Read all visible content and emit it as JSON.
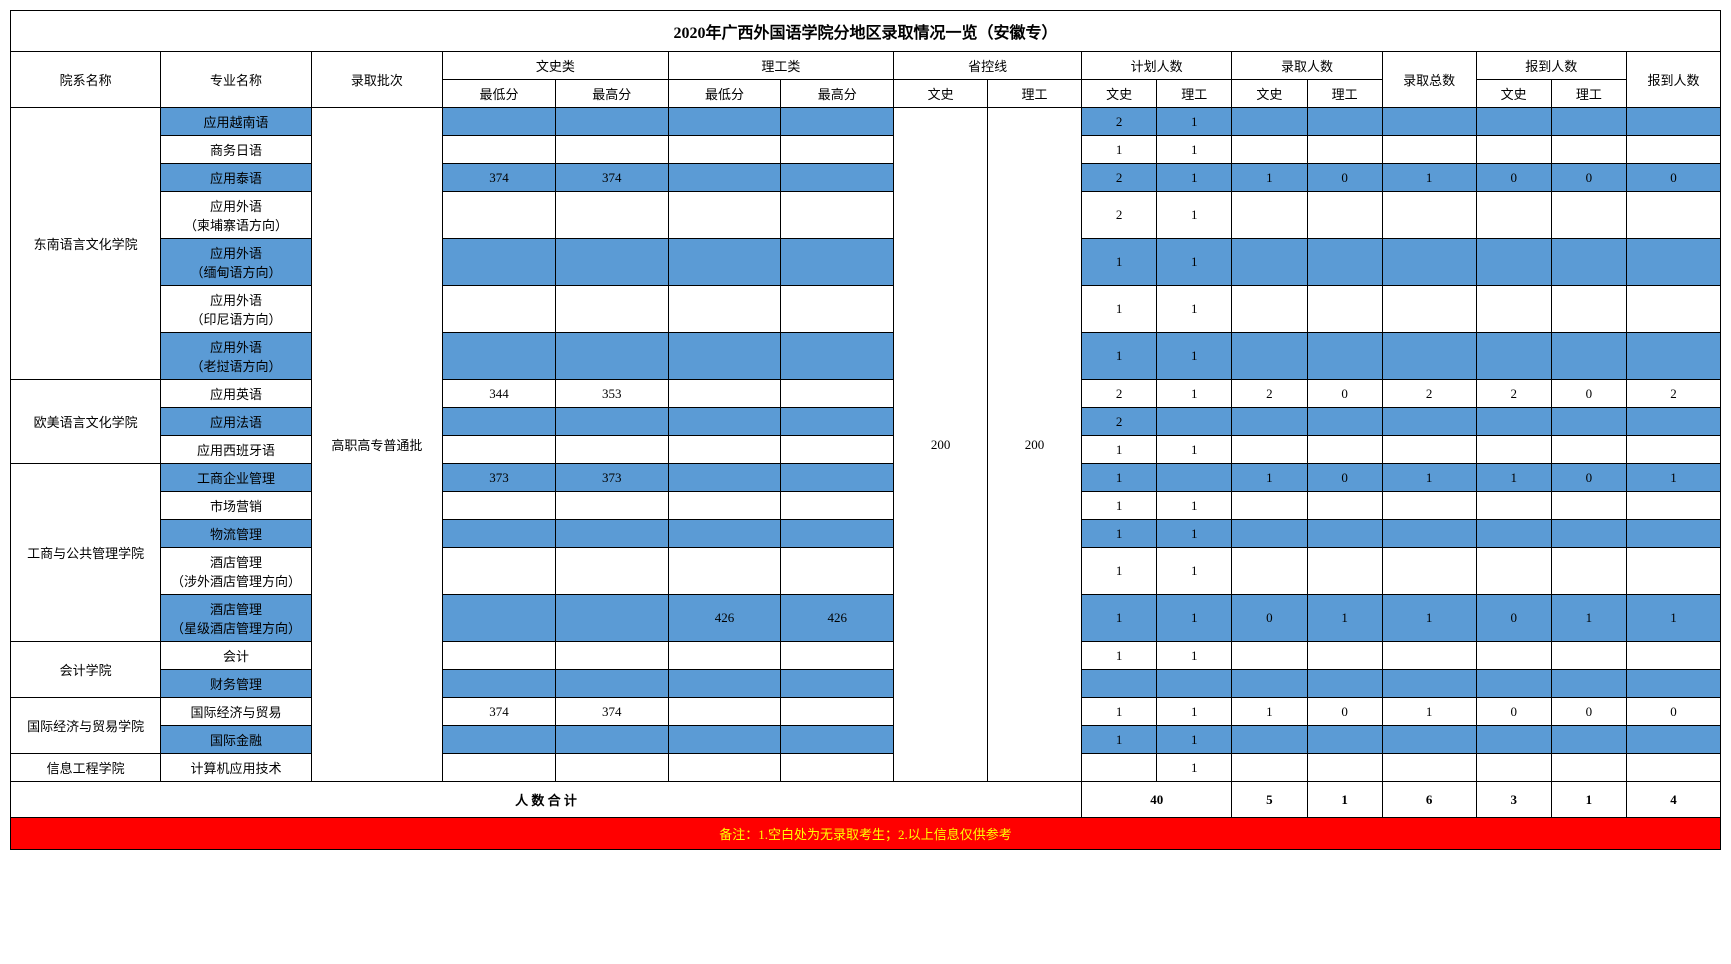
{
  "title": "2020年广西外国语学院分地区录取情况一览（安徽专）",
  "header_group": {
    "dept": "院系名称",
    "major": "专业名称",
    "batch": "录取批次",
    "wenshi": "文史类",
    "ligong": "理工类",
    "control": "省控线",
    "plan": "计划人数",
    "admit": "录取人数",
    "admit_total": "录取总数",
    "report": "报到人数",
    "report_total": "报到人数"
  },
  "header_sub": {
    "min": "最低分",
    "max": "最高分",
    "ws": "文史",
    "lg": "理工"
  },
  "batch_name": "高职高专普通批",
  "control_ws": "200",
  "control_lg": "200",
  "depts": [
    {
      "name": "东南语言文化学院",
      "rowspan": 7
    },
    {
      "name": "欧美语言文化学院",
      "rowspan": 3
    },
    {
      "name": "工商与公共管理学院",
      "rowspan": 5
    },
    {
      "name": "会计学院",
      "rowspan": 2
    },
    {
      "name": "国际经济与贸易学院",
      "rowspan": 2
    },
    {
      "name": "信息工程学院",
      "rowspan": 1
    }
  ],
  "rows": [
    {
      "blue": true,
      "major": "应用越南语",
      "wmin": "",
      "wmax": "",
      "lmin": "",
      "lmax": "",
      "pws": "2",
      "plg": "1",
      "aws": "",
      "alg": "",
      "atot": "",
      "rws": "",
      "rlg": "",
      "rtot": ""
    },
    {
      "blue": false,
      "major": "商务日语",
      "wmin": "",
      "wmax": "",
      "lmin": "",
      "lmax": "",
      "pws": "1",
      "plg": "1",
      "aws": "",
      "alg": "",
      "atot": "",
      "rws": "",
      "rlg": "",
      "rtot": ""
    },
    {
      "blue": true,
      "major": "应用泰语",
      "wmin": "374",
      "wmax": "374",
      "lmin": "",
      "lmax": "",
      "pws": "2",
      "plg": "1",
      "aws": "1",
      "alg": "0",
      "atot": "1",
      "rws": "0",
      "rlg": "0",
      "rtot": "0"
    },
    {
      "blue": false,
      "major": "应用外语\n（柬埔寨语方向）",
      "wmin": "",
      "wmax": "",
      "lmin": "",
      "lmax": "",
      "pws": "2",
      "plg": "1",
      "aws": "",
      "alg": "",
      "atot": "",
      "rws": "",
      "rlg": "",
      "rtot": ""
    },
    {
      "blue": true,
      "major": "应用外语\n（缅甸语方向）",
      "wmin": "",
      "wmax": "",
      "lmin": "",
      "lmax": "",
      "pws": "1",
      "plg": "1",
      "aws": "",
      "alg": "",
      "atot": "",
      "rws": "",
      "rlg": "",
      "rtot": ""
    },
    {
      "blue": false,
      "major": "应用外语\n（印尼语方向）",
      "wmin": "",
      "wmax": "",
      "lmin": "",
      "lmax": "",
      "pws": "1",
      "plg": "1",
      "aws": "",
      "alg": "",
      "atot": "",
      "rws": "",
      "rlg": "",
      "rtot": ""
    },
    {
      "blue": true,
      "major": "应用外语\n（老挝语方向）",
      "wmin": "",
      "wmax": "",
      "lmin": "",
      "lmax": "",
      "pws": "1",
      "plg": "1",
      "aws": "",
      "alg": "",
      "atot": "",
      "rws": "",
      "rlg": "",
      "rtot": ""
    },
    {
      "blue": false,
      "major": "应用英语",
      "wmin": "344",
      "wmax": "353",
      "lmin": "",
      "lmax": "",
      "pws": "2",
      "plg": "1",
      "aws": "2",
      "alg": "0",
      "atot": "2",
      "rws": "2",
      "rlg": "0",
      "rtot": "2"
    },
    {
      "blue": true,
      "major": "应用法语",
      "wmin": "",
      "wmax": "",
      "lmin": "",
      "lmax": "",
      "pws": "2",
      "plg": "",
      "aws": "",
      "alg": "",
      "atot": "",
      "rws": "",
      "rlg": "",
      "rtot": ""
    },
    {
      "blue": false,
      "major": "应用西班牙语",
      "wmin": "",
      "wmax": "",
      "lmin": "",
      "lmax": "",
      "pws": "1",
      "plg": "1",
      "aws": "",
      "alg": "",
      "atot": "",
      "rws": "",
      "rlg": "",
      "rtot": ""
    },
    {
      "blue": true,
      "major": "工商企业管理",
      "wmin": "373",
      "wmax": "373",
      "lmin": "",
      "lmax": "",
      "pws": "1",
      "plg": "",
      "aws": "1",
      "alg": "0",
      "atot": "1",
      "rws": "1",
      "rlg": "0",
      "rtot": "1"
    },
    {
      "blue": false,
      "major": "市场营销",
      "wmin": "",
      "wmax": "",
      "lmin": "",
      "lmax": "",
      "pws": "1",
      "plg": "1",
      "aws": "",
      "alg": "",
      "atot": "",
      "rws": "",
      "rlg": "",
      "rtot": ""
    },
    {
      "blue": true,
      "major": "物流管理",
      "wmin": "",
      "wmax": "",
      "lmin": "",
      "lmax": "",
      "pws": "1",
      "plg": "1",
      "aws": "",
      "alg": "",
      "atot": "",
      "rws": "",
      "rlg": "",
      "rtot": ""
    },
    {
      "blue": false,
      "major": "酒店管理\n（涉外酒店管理方向）",
      "wmin": "",
      "wmax": "",
      "lmin": "",
      "lmax": "",
      "pws": "1",
      "plg": "1",
      "aws": "",
      "alg": "",
      "atot": "",
      "rws": "",
      "rlg": "",
      "rtot": ""
    },
    {
      "blue": true,
      "major": "酒店管理\n（星级酒店管理方向）",
      "wmin": "",
      "wmax": "",
      "lmin": "426",
      "lmax": "426",
      "pws": "1",
      "plg": "1",
      "aws": "0",
      "alg": "1",
      "atot": "1",
      "rws": "0",
      "rlg": "1",
      "rtot": "1"
    },
    {
      "blue": false,
      "major": "会计",
      "wmin": "",
      "wmax": "",
      "lmin": "",
      "lmax": "",
      "pws": "1",
      "plg": "1",
      "aws": "",
      "alg": "",
      "atot": "",
      "rws": "",
      "rlg": "",
      "rtot": ""
    },
    {
      "blue": true,
      "major": "财务管理",
      "wmin": "",
      "wmax": "",
      "lmin": "",
      "lmax": "",
      "pws": "",
      "plg": "",
      "aws": "",
      "alg": "",
      "atot": "",
      "rws": "",
      "rlg": "",
      "rtot": ""
    },
    {
      "blue": false,
      "major": "国际经济与贸易",
      "wmin": "374",
      "wmax": "374",
      "lmin": "",
      "lmax": "",
      "pws": "1",
      "plg": "1",
      "aws": "1",
      "alg": "0",
      "atot": "1",
      "rws": "0",
      "rlg": "0",
      "rtot": "0"
    },
    {
      "blue": true,
      "major": "国际金融",
      "wmin": "",
      "wmax": "",
      "lmin": "",
      "lmax": "",
      "pws": "1",
      "plg": "1",
      "aws": "",
      "alg": "",
      "atot": "",
      "rws": "",
      "rlg": "",
      "rtot": ""
    },
    {
      "blue": false,
      "major": "计算机应用技术",
      "wmin": "",
      "wmax": "",
      "lmin": "",
      "lmax": "",
      "pws": "",
      "plg": "1",
      "aws": "",
      "alg": "",
      "atot": "",
      "rws": "",
      "rlg": "",
      "rtot": ""
    }
  ],
  "total": {
    "label": "人 数 合 计",
    "plan": "40",
    "aws": "5",
    "alg": "1",
    "atot": "6",
    "rws": "3",
    "rlg": "1",
    "rtot": "4"
  },
  "footnote": "备注：1.空白处为无录取考生；2.以上信息仅供参考"
}
